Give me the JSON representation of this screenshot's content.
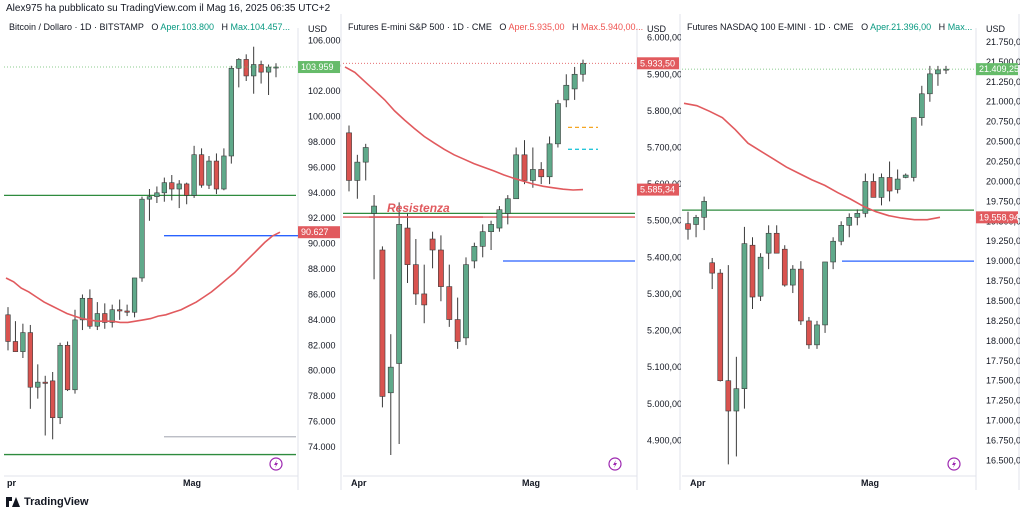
{
  "header": {
    "text": "Alex975 ha pubblicato su TradingView.com il Mag 16, 2025 06:35 UTC+2"
  },
  "footer": {
    "brand": "TradingView"
  },
  "colors": {
    "up": "#5fa98a",
    "down": "#d9534f",
    "ma": "#e15a5e",
    "green_line": "#2e8b3e",
    "blue_line": "#2962ff",
    "price_tag_green": "#66bb6a",
    "price_tag_red": "#e15a5e"
  },
  "panels": [
    {
      "title": "Bitcoin / Dollaro · 1D · BITSTAMP",
      "o_label": "O",
      "o_value": "Aper.103.800",
      "h_label": "H",
      "h_value": "Max.104.457...",
      "currency": "USD",
      "price_tag_main": "103.959",
      "price_tag_secondary": "90.627",
      "x_labels": [
        "pr",
        "Mag"
      ],
      "annotation": ""
    },
    {
      "title": "Futures E-mini S&P 500 · 1D · CME",
      "o_label": "O",
      "o_value": "Aper.5.935,00",
      "h_label": "H",
      "h_value": "Max.5.940,00...",
      "currency": "USD",
      "price_tag_main": "5.933,50",
      "price_tag_secondary": "5.585,34",
      "x_labels": [
        "Apr",
        "Mag"
      ],
      "annotation": "Resistenza"
    },
    {
      "title": "Futures NASDAQ 100 E-MINI · 1D · CME",
      "o_label": "O",
      "o_value": "Aper.21.396,00",
      "h_label": "H",
      "h_value": "Max...",
      "currency": "USD",
      "price_tag_main": "21.409,25",
      "price_tag_secondary": "19.558,94",
      "x_labels": [
        "Apr",
        "Mag"
      ],
      "annotation": ""
    }
  ],
  "chart_data": [
    {
      "type": "candlestick",
      "title": "Bitcoin / Dollaro · 1D · BITSTAMP",
      "ylabel": "USD",
      "y_ticks": [
        "106.000",
        "104.000",
        "102.000",
        "100.000",
        "98.000",
        "96.000",
        "94.000",
        "92.000",
        "90.000",
        "88.000",
        "86.000",
        "84.000",
        "82.000",
        "80.000",
        "78.000",
        "76.000",
        "74.000"
      ],
      "ylim": [
        72500,
        106500
      ],
      "x_ticks": [
        "pr",
        "Mag"
      ],
      "candles": [
        [
          84400,
          85000,
          81600,
          82300
        ],
        [
          82300,
          83900,
          81500,
          81500
        ],
        [
          81500,
          83700,
          81000,
          83000
        ],
        [
          83000,
          83600,
          77000,
          78700
        ],
        [
          78700,
          80500,
          77800,
          79100
        ],
        [
          79100,
          79600,
          74900,
          79000
        ],
        [
          79200,
          79900,
          74600,
          76300
        ],
        [
          76300,
          82200,
          75800,
          82000
        ],
        [
          82000,
          82300,
          78400,
          78500
        ],
        [
          78500,
          84800,
          78200,
          84000
        ],
        [
          84000,
          86000,
          83200,
          85700
        ],
        [
          85700,
          86400,
          83300,
          83500
        ],
        [
          83500,
          85400,
          83200,
          84500
        ],
        [
          84500,
          85300,
          83300,
          83800
        ],
        [
          83800,
          85200,
          83400,
          84800
        ],
        [
          84800,
          85600,
          84000,
          84700
        ],
        [
          84700,
          85200,
          84300,
          84600
        ],
        [
          84600,
          87300,
          84200,
          87300
        ],
        [
          87300,
          93700,
          87000,
          93500
        ],
        [
          93500,
          94300,
          91800,
          93700
        ],
        [
          93700,
          94500,
          93200,
          94000
        ],
        [
          94000,
          95200,
          93300,
          94800
        ],
        [
          94800,
          95400,
          93400,
          94300
        ],
        [
          94300,
          95000,
          92800,
          94700
        ],
        [
          94700,
          94800,
          93100,
          93800
        ],
        [
          93800,
          97700,
          93600,
          97000
        ],
        [
          97000,
          97500,
          94400,
          94600
        ],
        [
          94600,
          96900,
          94300,
          96500
        ],
        [
          96500,
          97100,
          93900,
          94300
        ],
        [
          94300,
          97500,
          94200,
          96900
        ],
        [
          96900,
          104000,
          96300,
          103800
        ],
        [
          103800,
          104600,
          102300,
          104500
        ],
        [
          104500,
          104900,
          102800,
          103200
        ],
        [
          103200,
          105500,
          101800,
          104100
        ],
        [
          104100,
          104400,
          102600,
          103500
        ],
        [
          103500,
          104100,
          101700,
          103900
        ],
        [
          103900,
          104200,
          103100,
          103900
        ]
      ],
      "ma_values": [
        87300,
        87000,
        86500,
        86200,
        85800,
        85400,
        85100,
        84800,
        84500,
        84300,
        84100,
        84000,
        83900,
        83900,
        83900,
        83800,
        83800,
        83900,
        84000,
        84100,
        84300,
        84400,
        84600,
        84800,
        85100,
        85400,
        85800,
        86200,
        86700,
        87200,
        87700,
        88300,
        88900,
        89500,
        90100,
        90600,
        90900
      ],
      "levels": [
        {
          "y": 93800,
          "color": "green"
        },
        {
          "y": 90627,
          "color": "blue"
        },
        {
          "y": 73400,
          "color": "green"
        },
        {
          "y": 74800,
          "color": "gray"
        }
      ]
    },
    {
      "type": "candlestick",
      "title": "Futures E-mini S&P 500 · 1D · CME",
      "ylabel": "USD",
      "y_ticks": [
        "6.000,00",
        "5.900,00",
        "5.800,00",
        "5.700,00",
        "5.600,00",
        "5.500,00",
        "5.400,00",
        "5.300,00",
        "5.200,00",
        "5.100,00",
        "5.000,00",
        "4.900,00"
      ],
      "ylim": [
        4830,
        6010
      ],
      "x_ticks": [
        "Apr",
        "Mag"
      ],
      "candles": [
        [
          5740,
          5760,
          5580,
          5610
        ],
        [
          5610,
          5680,
          5560,
          5660
        ],
        [
          5660,
          5710,
          5610,
          5700
        ],
        [
          5520,
          5570,
          5340,
          5540
        ],
        [
          5420,
          5430,
          4990,
          5020
        ],
        [
          5030,
          5190,
          4860,
          5100
        ],
        [
          5110,
          5550,
          4890,
          5490
        ],
        [
          5480,
          5520,
          5330,
          5380
        ],
        [
          5380,
          5450,
          5270,
          5300
        ],
        [
          5300,
          5380,
          5220,
          5270
        ],
        [
          5450,
          5470,
          5370,
          5420
        ],
        [
          5420,
          5460,
          5280,
          5320
        ],
        [
          5320,
          5380,
          5210,
          5230
        ],
        [
          5230,
          5290,
          5150,
          5170
        ],
        [
          5180,
          5400,
          5160,
          5380
        ],
        [
          5390,
          5440,
          5370,
          5430
        ],
        [
          5430,
          5490,
          5400,
          5470
        ],
        [
          5470,
          5500,
          5420,
          5490
        ],
        [
          5480,
          5540,
          5470,
          5530
        ],
        [
          5520,
          5570,
          5490,
          5560
        ],
        [
          5560,
          5700,
          5560,
          5680
        ],
        [
          5680,
          5720,
          5600,
          5610
        ],
        [
          5610,
          5700,
          5590,
          5640
        ],
        [
          5640,
          5660,
          5600,
          5620
        ],
        [
          5620,
          5730,
          5600,
          5710
        ],
        [
          5710,
          5830,
          5700,
          5820
        ],
        [
          5830,
          5900,
          5810,
          5870
        ],
        [
          5860,
          5920,
          5830,
          5900
        ],
        [
          5900,
          5940,
          5880,
          5930
        ]
      ],
      "ma_values": [
        5920,
        5905,
        5880,
        5855,
        5830,
        5800,
        5775,
        5752,
        5730,
        5712,
        5695,
        5680,
        5668,
        5656,
        5646,
        5636,
        5625,
        5616,
        5608,
        5600,
        5594,
        5590,
        5586,
        5584,
        5585
      ],
      "levels": [
        {
          "y": 5520,
          "color": "green"
        },
        {
          "y": 5390,
          "color": "blue"
        },
        {
          "y": 5510,
          "color": "red"
        }
      ]
    },
    {
      "type": "candlestick",
      "title": "Futures NASDAQ 100 E-MINI · 1D · CME",
      "ylabel": "USD",
      "y_ticks": [
        "21.750,00",
        "21.500,00",
        "21.250,00",
        "21.000,00",
        "20.750,00",
        "20.500,00",
        "20.250,00",
        "20.000,00",
        "19.750,00",
        "19.500,00",
        "19.250,00",
        "19.000,00",
        "18.750,00",
        "18.500,00",
        "18.250,00",
        "18.000,00",
        "17.750,00",
        "17.500,00",
        "17.250,00",
        "17.000,00",
        "16.750,00",
        "16.500,00"
      ],
      "ylim": [
        16430,
        21850
      ],
      "x_ticks": [
        "Apr",
        "Mag"
      ],
      "candles": [
        [
          19470,
          19620,
          19270,
          19400
        ],
        [
          19460,
          19580,
          19300,
          19550
        ],
        [
          19550,
          19810,
          19390,
          19750
        ],
        [
          18980,
          19040,
          18650,
          18850
        ],
        [
          18850,
          18900,
          17490,
          17500
        ],
        [
          17500,
          18950,
          16450,
          17120
        ],
        [
          17120,
          17800,
          16550,
          17400
        ],
        [
          17400,
          19430,
          17150,
          19220
        ],
        [
          19200,
          19300,
          18400,
          18550
        ],
        [
          18560,
          19100,
          18500,
          19050
        ],
        [
          19100,
          19450,
          18900,
          19350
        ],
        [
          19350,
          19450,
          19100,
          19100
        ],
        [
          19150,
          19200,
          18680,
          18700
        ],
        [
          18700,
          18950,
          18600,
          18900
        ],
        [
          18900,
          19000,
          18200,
          18250
        ],
        [
          18250,
          18300,
          17900,
          17950
        ],
        [
          17950,
          18250,
          17900,
          18200
        ],
        [
          18200,
          18990,
          18100,
          18990
        ],
        [
          18990,
          19300,
          18900,
          19250
        ],
        [
          19250,
          19500,
          19200,
          19450
        ],
        [
          19450,
          19600,
          19300,
          19550
        ],
        [
          19550,
          19650,
          19450,
          19600
        ],
        [
          19600,
          20100,
          19550,
          20000
        ],
        [
          20000,
          20100,
          19800,
          19800
        ],
        [
          19800,
          20100,
          19700,
          20050
        ],
        [
          20050,
          20250,
          19750,
          19880
        ],
        [
          19900,
          20150,
          19850,
          20030
        ],
        [
          20050,
          20100,
          20040,
          20080
        ],
        [
          20050,
          20800,
          20000,
          20800
        ],
        [
          20800,
          21200,
          20700,
          21100
        ],
        [
          21100,
          21450,
          21000,
          21350
        ],
        [
          21350,
          21450,
          21200,
          21400
        ],
        [
          21400,
          21450,
          21350,
          21409
        ]
      ],
      "ma_values": [
        20980,
        20950,
        20880,
        20800,
        20650,
        20480,
        20380,
        20280,
        20180,
        20100,
        20020,
        19950,
        19860,
        19780,
        19690,
        19620,
        19570,
        19540,
        19520,
        19520,
        19550
      ],
      "levels": [
        {
          "y": 19640,
          "color": "green"
        },
        {
          "y": 19000,
          "color": "blue"
        }
      ]
    }
  ]
}
